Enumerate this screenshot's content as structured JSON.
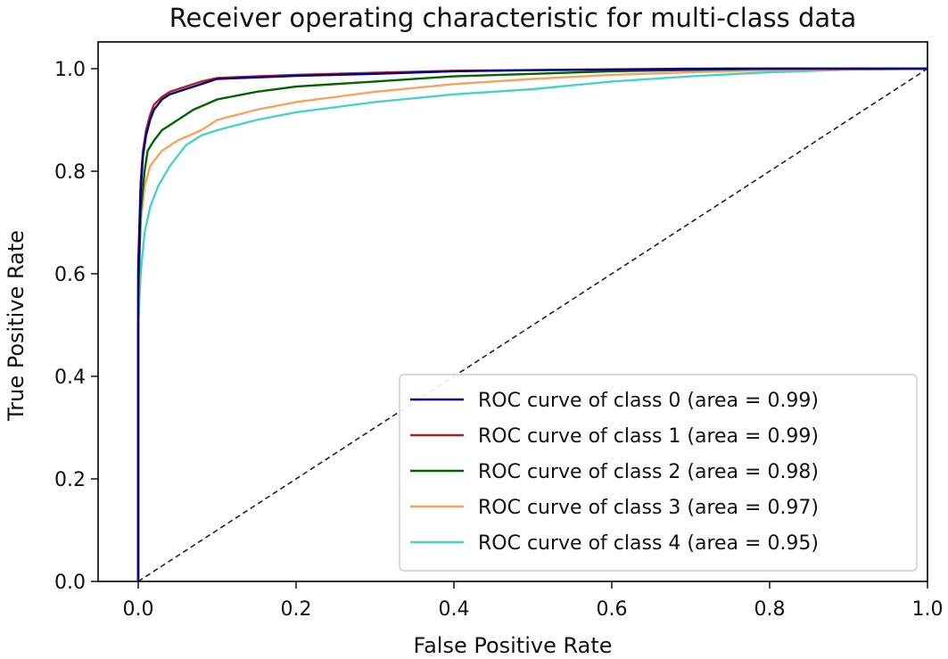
{
  "chart_data": {
    "type": "line",
    "title": "Receiver operating characteristic for multi-class data",
    "xlabel": "False Positive Rate",
    "ylabel": "True Positive Rate",
    "xlim": [
      0.0,
      1.0
    ],
    "ylim": [
      0.0,
      1.0
    ],
    "xticks": [
      0.0,
      0.2,
      0.4,
      0.6,
      0.8,
      1.0
    ],
    "xtick_labels": [
      "0.0",
      "0.2",
      "0.4",
      "0.6",
      "0.8",
      "1.0"
    ],
    "yticks": [
      0.0,
      0.2,
      0.4,
      0.6,
      0.8,
      1.0
    ],
    "ytick_labels": [
      "0.0",
      "0.2",
      "0.4",
      "0.6",
      "0.8",
      "1.0"
    ],
    "grid": false,
    "legend_position": "lower-right",
    "series": [
      {
        "name": "ROC curve of class 0 (area = 0.99)",
        "color": "#00008b",
        "points": [
          [
            0,
            0
          ],
          [
            0,
            0.6
          ],
          [
            0.003,
            0.76
          ],
          [
            0.006,
            0.83
          ],
          [
            0.01,
            0.87
          ],
          [
            0.015,
            0.9
          ],
          [
            0.02,
            0.92
          ],
          [
            0.03,
            0.94
          ],
          [
            0.04,
            0.95
          ],
          [
            0.06,
            0.96
          ],
          [
            0.08,
            0.97
          ],
          [
            0.1,
            0.98
          ],
          [
            0.15,
            0.983
          ],
          [
            0.2,
            0.986
          ],
          [
            0.3,
            0.99
          ],
          [
            0.4,
            0.995
          ],
          [
            0.5,
            0.997
          ],
          [
            0.6,
            0.998
          ],
          [
            0.75,
            1.0
          ],
          [
            1.0,
            1.0
          ]
        ]
      },
      {
        "name": "ROC curve of class 1 (area = 0.99)",
        "color": "#b22222",
        "points": [
          [
            0,
            0
          ],
          [
            0,
            0.62
          ],
          [
            0.003,
            0.78
          ],
          [
            0.006,
            0.84
          ],
          [
            0.01,
            0.88
          ],
          [
            0.015,
            0.91
          ],
          [
            0.02,
            0.93
          ],
          [
            0.03,
            0.945
          ],
          [
            0.04,
            0.955
          ],
          [
            0.06,
            0.965
          ],
          [
            0.08,
            0.975
          ],
          [
            0.1,
            0.982
          ],
          [
            0.15,
            0.985
          ],
          [
            0.2,
            0.988
          ],
          [
            0.3,
            0.992
          ],
          [
            0.4,
            0.996
          ],
          [
            0.55,
            0.998
          ],
          [
            0.7,
            1.0
          ],
          [
            1.0,
            1.0
          ]
        ]
      },
      {
        "name": "ROC curve of class 2 (area = 0.98)",
        "color": "#006400",
        "points": [
          [
            0,
            0
          ],
          [
            0,
            0.55
          ],
          [
            0.003,
            0.72
          ],
          [
            0.008,
            0.8
          ],
          [
            0.012,
            0.84
          ],
          [
            0.02,
            0.86
          ],
          [
            0.03,
            0.88
          ],
          [
            0.05,
            0.9
          ],
          [
            0.07,
            0.92
          ],
          [
            0.1,
            0.94
          ],
          [
            0.15,
            0.955
          ],
          [
            0.2,
            0.965
          ],
          [
            0.3,
            0.975
          ],
          [
            0.4,
            0.985
          ],
          [
            0.5,
            0.99
          ],
          [
            0.6,
            0.995
          ],
          [
            0.8,
            1.0
          ],
          [
            1.0,
            1.0
          ]
        ]
      },
      {
        "name": "ROC curve of class 3 (area = 0.97)",
        "color": "#f4a460",
        "points": [
          [
            0,
            0
          ],
          [
            0,
            0.55
          ],
          [
            0.003,
            0.7
          ],
          [
            0.008,
            0.77
          ],
          [
            0.015,
            0.81
          ],
          [
            0.03,
            0.84
          ],
          [
            0.05,
            0.86
          ],
          [
            0.08,
            0.88
          ],
          [
            0.1,
            0.9
          ],
          [
            0.15,
            0.92
          ],
          [
            0.2,
            0.935
          ],
          [
            0.3,
            0.955
          ],
          [
            0.4,
            0.97
          ],
          [
            0.5,
            0.98
          ],
          [
            0.6,
            0.988
          ],
          [
            0.7,
            0.993
          ],
          [
            0.8,
            0.997
          ],
          [
            1.0,
            1.0
          ]
        ]
      },
      {
        "name": "ROC curve of class 4 (area = 0.95)",
        "color": "#48d1cc",
        "points": [
          [
            0,
            0
          ],
          [
            0,
            0.5
          ],
          [
            0.003,
            0.6
          ],
          [
            0.008,
            0.68
          ],
          [
            0.015,
            0.73
          ],
          [
            0.025,
            0.77
          ],
          [
            0.04,
            0.81
          ],
          [
            0.06,
            0.85
          ],
          [
            0.08,
            0.87
          ],
          [
            0.1,
            0.88
          ],
          [
            0.15,
            0.9
          ],
          [
            0.2,
            0.915
          ],
          [
            0.3,
            0.935
          ],
          [
            0.4,
            0.95
          ],
          [
            0.5,
            0.96
          ],
          [
            0.6,
            0.975
          ],
          [
            0.7,
            0.985
          ],
          [
            0.8,
            0.993
          ],
          [
            0.9,
            0.998
          ],
          [
            1.0,
            1.0
          ]
        ]
      }
    ],
    "diagonal": {
      "points": [
        [
          0,
          0
        ],
        [
          1,
          1
        ]
      ],
      "color": "#222222",
      "style": "dashed"
    }
  }
}
